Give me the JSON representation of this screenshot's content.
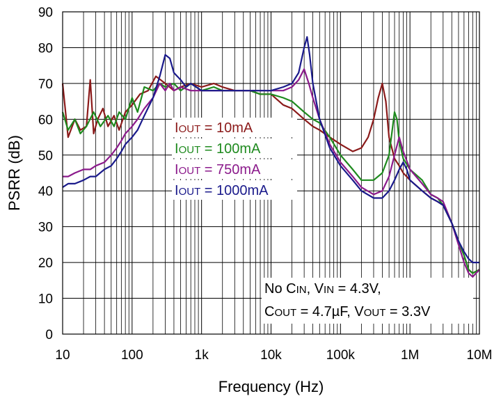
{
  "chart_data": {
    "type": "line",
    "title": "",
    "xlabel": "Frequency (Hz)",
    "ylabel": "PSRR (dB)",
    "x_scale": "log",
    "xlim": [
      10,
      10000000
    ],
    "ylim": [
      0,
      90
    ],
    "grid": true,
    "x_ticks": [
      {
        "value": 10,
        "label": "10"
      },
      {
        "value": 100,
        "label": "100"
      },
      {
        "value": 1000,
        "label": "1k"
      },
      {
        "value": 10000,
        "label": "10k"
      },
      {
        "value": 100000,
        "label": "100k"
      },
      {
        "value": 1000000,
        "label": "1M"
      },
      {
        "value": 10000000,
        "label": "10M"
      }
    ],
    "y_ticks": [
      0,
      10,
      20,
      30,
      40,
      50,
      60,
      70,
      80,
      90
    ],
    "legend": {
      "placement": "center-left",
      "entries": [
        {
          "prefix": "I",
          "sub": "OUT",
          "suffix": " = 10mA",
          "color": "#8B1A1A"
        },
        {
          "prefix": "I",
          "sub": "OUT",
          "suffix": " = 100mA",
          "color": "#1E8A1E"
        },
        {
          "prefix": "I",
          "sub": "OUT",
          "suffix": " = 750mA",
          "color": "#8B1A8B"
        },
        {
          "prefix": "I",
          "sub": "OUT",
          "suffix": " = 1000mA",
          "color": "#1A1A8B"
        }
      ]
    },
    "annotation": {
      "line1": [
        {
          "t": "No C"
        },
        {
          "t": "IN",
          "sub": true
        },
        {
          "t": ", V"
        },
        {
          "t": "IN",
          "sub": true
        },
        {
          "t": " = 4.3V,"
        }
      ],
      "line2": [
        {
          "t": "C"
        },
        {
          "t": "OUT",
          "sub": true
        },
        {
          "t": " = 4.7µF, V"
        },
        {
          "t": "OUT",
          "sub": true
        },
        {
          "t": " = 3.3V"
        }
      ]
    },
    "series": [
      {
        "name": "IOUT = 10mA",
        "color": "#8B1A1A",
        "x": [
          10,
          12,
          15,
          18,
          22,
          25,
          28,
          32,
          38,
          45,
          55,
          65,
          80,
          100,
          130,
          170,
          220,
          300,
          400,
          500,
          700,
          1000,
          1500,
          2000,
          3000,
          5000,
          7000,
          10000,
          15000,
          20000,
          30000,
          40000,
          50000,
          70000,
          100000,
          150000,
          200000,
          250000,
          300000,
          350000,
          400000,
          450000,
          500000,
          600000,
          700000,
          800000,
          1000000,
          1500000,
          2000000,
          2500000,
          3000000,
          4000000,
          5000000,
          6000000,
          7000000,
          8000000,
          10000000
        ],
        "y": [
          70,
          55,
          60,
          57,
          58,
          71,
          56,
          60,
          63,
          58,
          61,
          57,
          62,
          64,
          67,
          68,
          72,
          70,
          68,
          69,
          70,
          69,
          70,
          69,
          68,
          68,
          67,
          67,
          64,
          63,
          60,
          58,
          57,
          55,
          53,
          51,
          52,
          55,
          60,
          66,
          70,
          65,
          55,
          49,
          47,
          45,
          43,
          40,
          38,
          37,
          36,
          31,
          26,
          22,
          18,
          17,
          18
        ]
      },
      {
        "name": "IOUT = 100mA",
        "color": "#1E8A1E",
        "x": [
          10,
          12,
          15,
          18,
          22,
          28,
          35,
          45,
          55,
          65,
          80,
          100,
          120,
          150,
          200,
          250,
          300,
          400,
          500,
          700,
          1000,
          1500,
          2000,
          3000,
          5000,
          7000,
          10000,
          15000,
          20000,
          30000,
          40000,
          50000,
          70000,
          100000,
          150000,
          200000,
          300000,
          400000,
          500000,
          600000,
          650000,
          700000,
          800000,
          1000000,
          1500000,
          2000000,
          2500000,
          3000000,
          4000000,
          5000000,
          6000000,
          7000000,
          8000000,
          10000000
        ],
        "y": [
          62,
          57,
          60,
          56,
          58,
          62,
          58,
          61,
          58,
          62,
          60,
          66,
          62,
          69,
          68,
          70,
          69,
          70,
          68,
          70,
          68,
          69,
          68,
          68,
          68,
          67,
          67,
          66,
          65,
          62,
          60,
          59,
          55,
          50,
          46,
          43,
          43,
          45,
          50,
          62,
          60,
          54,
          49,
          46,
          43,
          39,
          38,
          36,
          31,
          26,
          22,
          18,
          17,
          18
        ]
      },
      {
        "name": "IOUT = 750mA",
        "color": "#8B1A8B",
        "x": [
          10,
          12,
          15,
          20,
          25,
          30,
          40,
          50,
          60,
          70,
          80,
          100,
          120,
          150,
          200,
          250,
          300,
          350,
          400,
          500,
          700,
          1000,
          1500,
          2000,
          3000,
          5000,
          7000,
          10000,
          15000,
          20000,
          25000,
          30000,
          35000,
          40000,
          50000,
          70000,
          100000,
          150000,
          200000,
          300000,
          400000,
          500000,
          600000,
          700000,
          800000,
          1000000,
          1500000,
          2000000,
          2500000,
          3000000,
          4000000,
          5000000,
          6000000,
          7000000,
          8000000,
          10000000
        ],
        "y": [
          44,
          44,
          45,
          46,
          46,
          47,
          48,
          50,
          52,
          54,
          56,
          58,
          60,
          63,
          66,
          70,
          68,
          70,
          68,
          69,
          68,
          68,
          68,
          68,
          68,
          68,
          68,
          68,
          68,
          69,
          71,
          74,
          70,
          66,
          60,
          53,
          48,
          44,
          41,
          39,
          40,
          44,
          50,
          55,
          51,
          46,
          42,
          39,
          38,
          37,
          31,
          25,
          20,
          17,
          16,
          18
        ]
      },
      {
        "name": "IOUT = 1000mA",
        "color": "#1A1A8B",
        "x": [
          10,
          12,
          15,
          20,
          25,
          30,
          40,
          50,
          60,
          70,
          80,
          100,
          120,
          150,
          200,
          250,
          300,
          350,
          400,
          500,
          600,
          700,
          1000,
          1500,
          2000,
          3000,
          5000,
          7000,
          10000,
          15000,
          20000,
          25000,
          30000,
          33000,
          36000,
          40000,
          50000,
          70000,
          100000,
          150000,
          200000,
          300000,
          400000,
          500000,
          600000,
          700000,
          800000,
          900000,
          1000000,
          1500000,
          2000000,
          2500000,
          3000000,
          4000000,
          5000000,
          6000000,
          7000000,
          8000000,
          10000000
        ],
        "y": [
          41,
          42,
          42,
          43,
          44,
          44,
          46,
          47,
          49,
          51,
          53,
          55,
          57,
          61,
          66,
          72,
          78,
          77,
          73,
          71,
          69,
          70,
          68,
          68,
          68,
          68,
          68,
          68,
          68,
          69,
          70,
          73,
          80,
          83,
          78,
          70,
          60,
          52,
          47,
          43,
          40,
          38,
          38,
          40,
          43,
          46,
          48,
          46,
          43,
          40,
          38,
          37,
          36,
          31,
          26,
          23,
          21,
          20,
          20
        ]
      }
    ]
  }
}
